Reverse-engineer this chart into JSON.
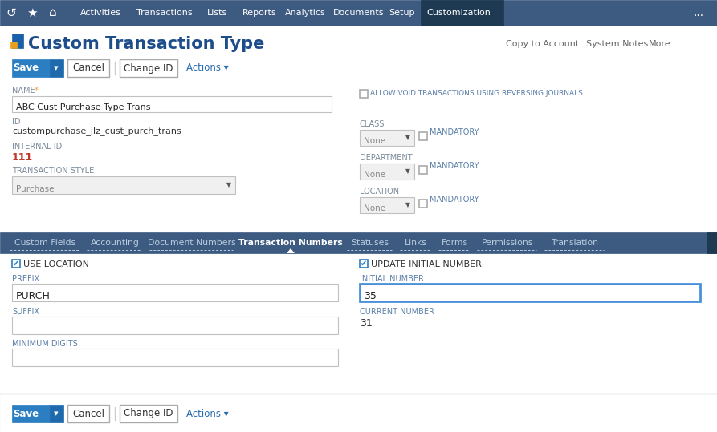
{
  "nav_bg": "#3d5a80",
  "nav_active_bg": "#1e3a52",
  "nav_items": [
    "Activities",
    "Transactions",
    "Lists",
    "Reports",
    "Analytics",
    "Documents",
    "Setup",
    "Customization"
  ],
  "nav_active": "Customization",
  "page_bg": "#f0f2f5",
  "white": "#ffffff",
  "title": "Custom Transaction Type",
  "title_color": "#1e4d8c",
  "top_links": [
    "Copy to Account",
    "System Notes",
    "More"
  ],
  "top_links_color": "#666666",
  "btn_save_bg": "#2b7ec1",
  "btn_save_dropdown_bg": "#1f6aad",
  "btn_cancel_text": "Cancel",
  "btn_changeid_text": "Change ID",
  "btn_actions_text": "Actions ▾",
  "btn_actions_color": "#2b6cb0",
  "field_name_label": "NAME",
  "name_star_color": "#e8a020",
  "field_name_value": "ABC Cust Purchase Type Trans",
  "field_id_label": "ID",
  "field_id_value": "custompurchase_jlz_cust_purch_trans",
  "field_internalid_label": "INTERNAL ID",
  "field_internalid_value": "111",
  "field_internalid_color": "#c0392b",
  "field_txstyle_label": "TRANSACTION STYLE",
  "field_txstyle_value": "Purchase",
  "allow_void_label": "ALLOW VOID TRANSACTIONS USING REVERSING JOURNALS",
  "allow_void_label_color": "#5a7fa8",
  "class_label": "CLASS",
  "dept_label": "DEPARTMENT",
  "location_label": "LOCATION",
  "mandatory_label": "MANDATORY",
  "mandatory_color": "#5a7fa8",
  "none_label": "None",
  "tabs": [
    "Custom Fields",
    "Accounting",
    "Document Numbers",
    "Transaction Numbers",
    "Statuses",
    "Links",
    "Forms",
    "Permissions",
    "Translation"
  ],
  "active_tab": "Transaction Numbers",
  "tab_bg": "#3d5a80",
  "use_location_label": "USE LOCATION",
  "prefix_label": "PREFIX",
  "prefix_value": "PURCH",
  "suffix_label": "SUFFIX",
  "mindigits_label": "MINIMUM DIGITS",
  "update_initial_label": "UPDATE INITIAL NUMBER",
  "initial_number_label": "INITIAL NUMBER",
  "initial_number_value": "35",
  "current_number_label": "CURRENT NUMBER",
  "current_number_value": "31",
  "input_border": "#c0c0c0",
  "input_active_border": "#4a90d9",
  "label_color": "#7a8a9a",
  "small_label_color": "#5a7fa8",
  "checkbox_color": "#2b7ec1",
  "scrollbar_color": "#1e3a52",
  "separator_color": "#d0d5dd"
}
